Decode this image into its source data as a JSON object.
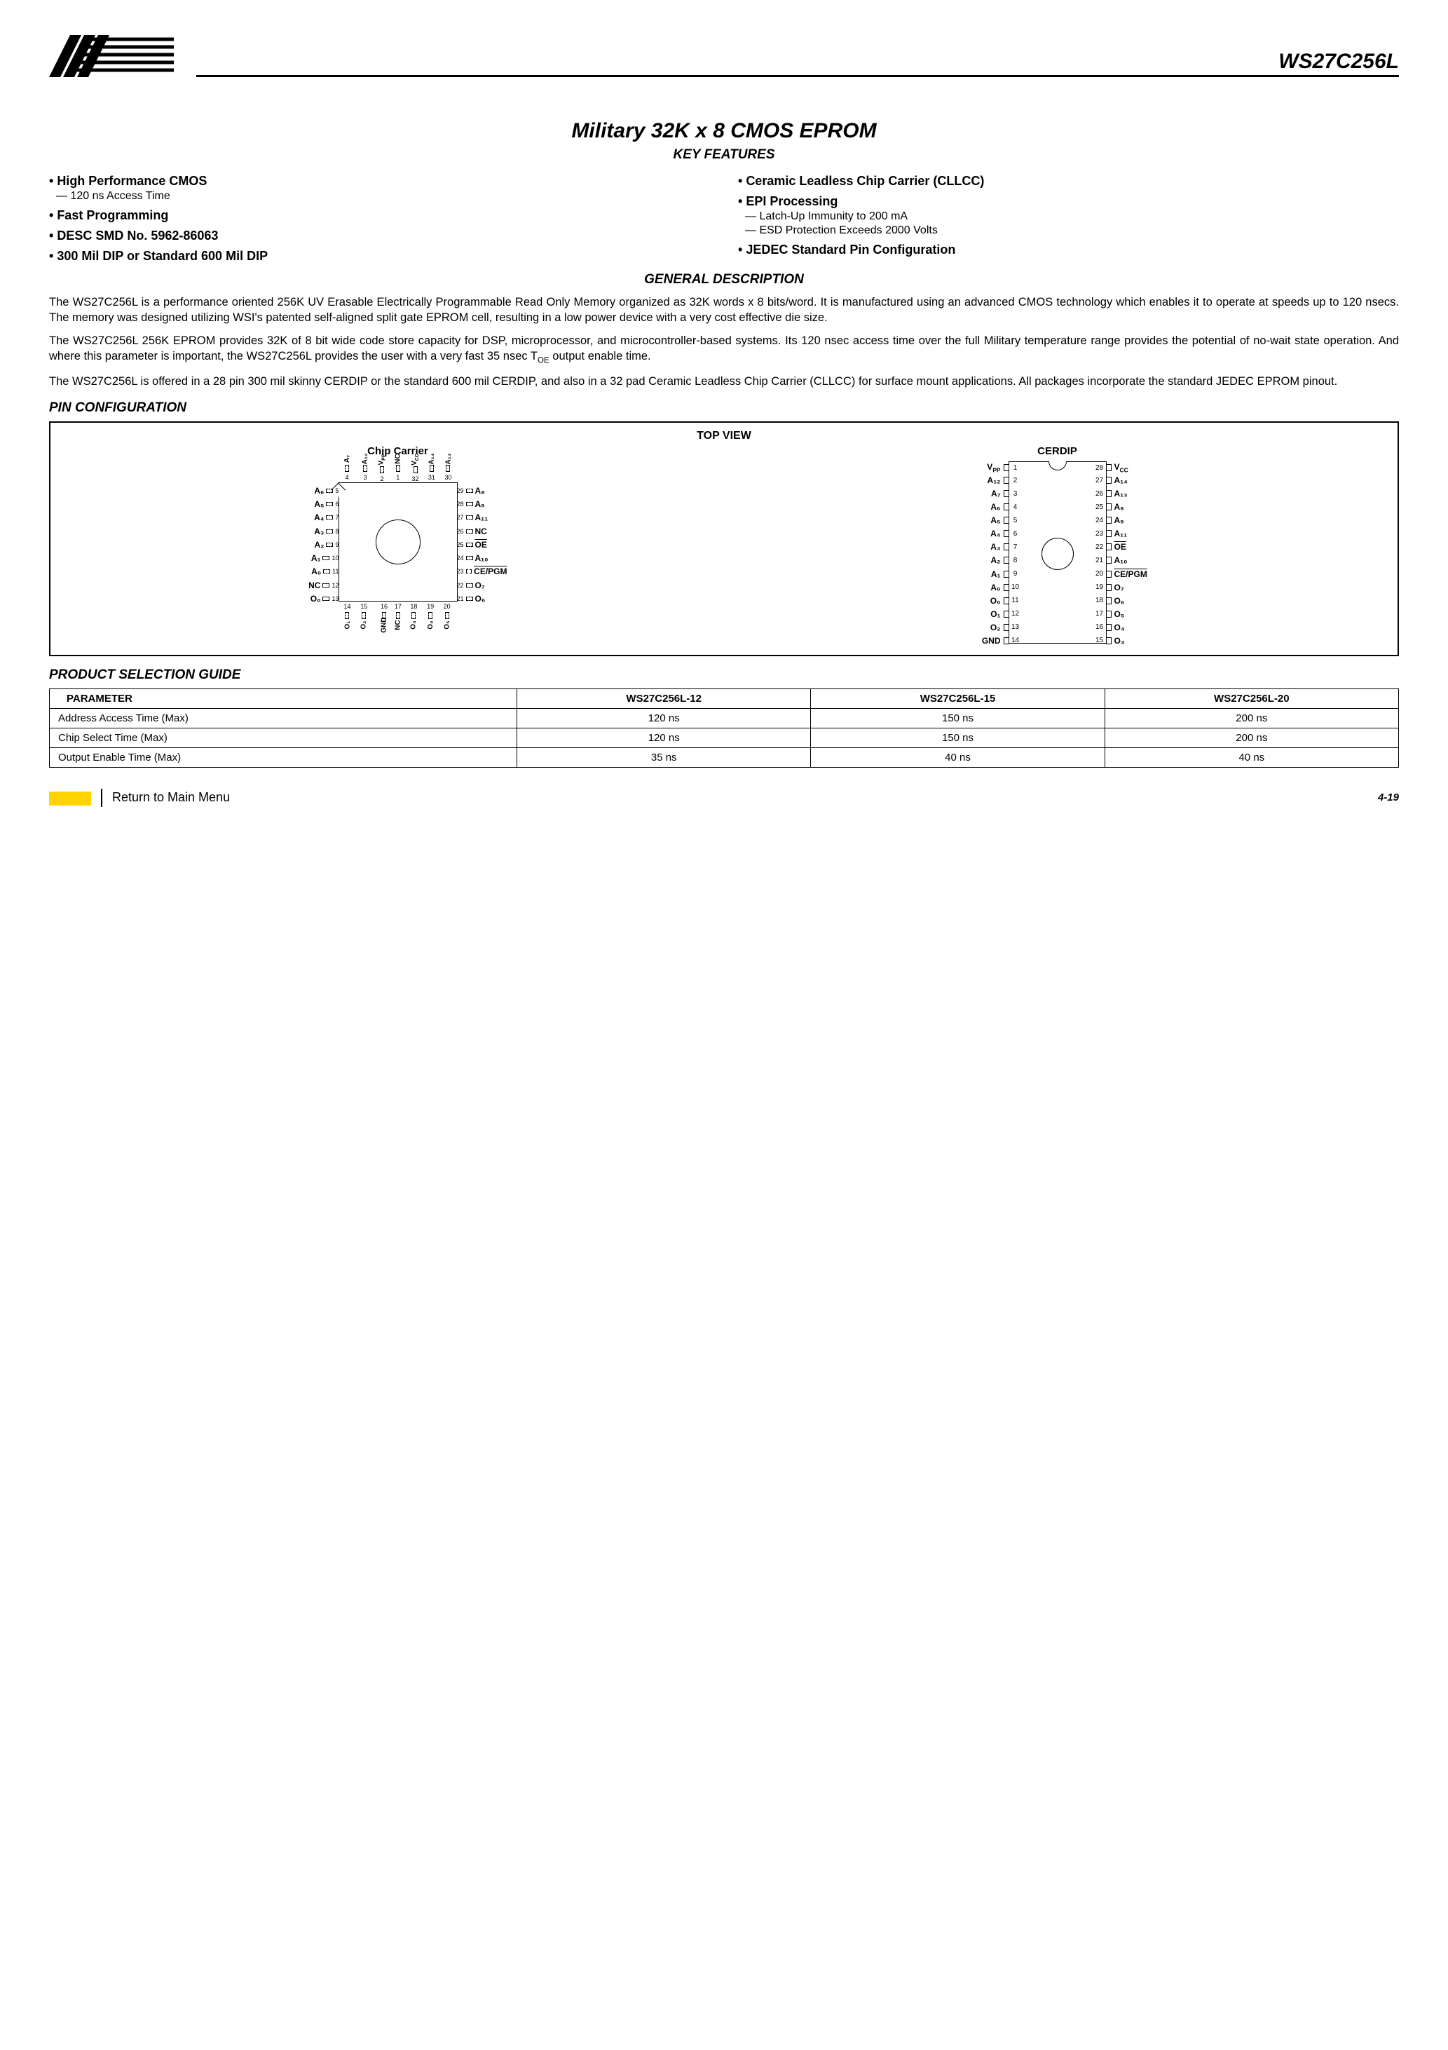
{
  "header": {
    "part_number": "WS27C256L"
  },
  "title": "Military 32K x 8 CMOS EPROM",
  "sections": {
    "key_features": "KEY FEATURES",
    "general_desc": "GENERAL DESCRIPTION",
    "pin_config": "PIN CONFIGURATION",
    "product_sel": "PRODUCT SELECTION GUIDE"
  },
  "features": {
    "left": [
      {
        "type": "main",
        "text": "High Performance CMOS"
      },
      {
        "type": "sub",
        "text": "120 ns Access Time"
      },
      {
        "type": "main",
        "text": "Fast Programming"
      },
      {
        "type": "main",
        "text": "DESC SMD No. 5962-86063"
      },
      {
        "type": "main",
        "text": "300 Mil DIP or Standard 600 Mil DIP"
      }
    ],
    "right": [
      {
        "type": "main",
        "text": "Ceramic Leadless Chip Carrier (CLLCC)"
      },
      {
        "type": "main",
        "text": "EPI Processing"
      },
      {
        "type": "sub",
        "text": "Latch-Up Immunity to 200 mA"
      },
      {
        "type": "sub",
        "text": "ESD Protection Exceeds 2000 Volts"
      },
      {
        "type": "main",
        "text": "JEDEC Standard Pin Configuration"
      }
    ]
  },
  "description": {
    "p1": "The WS27C256L is a performance oriented 256K UV Erasable Electrically Programmable Read Only Memory organized as 32K words x 8 bits/word. It is manufactured using an advanced CMOS technology which enables it to operate at speeds up to 120 nsecs. The memory was designed utilizing WSI's patented self-aligned split gate EPROM cell, resulting in a low power device with a very cost effective die size.",
    "p2": "The WS27C256L 256K EPROM provides 32K of 8 bit wide code store capacity for DSP, microprocessor, and microcontroller-based systems. Its 120 nsec access time over the full Military temperature range provides the potential of no-wait state operation. And where this parameter is important, the WS27C256L provides the user with a very fast 35 nsec T",
    "p2_sub": "OE",
    "p2_tail": " output enable time.",
    "p3": "The WS27C256L is offered in a 28 pin 300 mil skinny CERDIP or the standard 600 mil CERDIP, and also in a 32 pad Ceramic Leadless Chip Carrier (CLLCC) for surface mount applications.  All packages incorporate the standard JEDEC EPROM pinout."
  },
  "pinbox": {
    "topview": "TOP VIEW",
    "cc_title": "Chip Carrier",
    "dip_title": "CERDIP"
  },
  "cc": {
    "top": [
      {
        "n": "4",
        "l": "A₇"
      },
      {
        "n": "3",
        "l": "A₁₂"
      },
      {
        "n": "2",
        "l": "V_PP"
      },
      {
        "n": "1",
        "l": "NC"
      },
      {
        "n": "32",
        "l": "V_CC"
      },
      {
        "n": "31",
        "l": "A₁₄"
      },
      {
        "n": "30",
        "l": "A₁₃"
      }
    ],
    "left": [
      {
        "n": "5",
        "l": "A₆"
      },
      {
        "n": "6",
        "l": "A₅"
      },
      {
        "n": "7",
        "l": "A₄"
      },
      {
        "n": "8",
        "l": "A₃"
      },
      {
        "n": "9",
        "l": "A₂"
      },
      {
        "n": "10",
        "l": "A₁"
      },
      {
        "n": "11",
        "l": "A₀"
      },
      {
        "n": "12",
        "l": "NC"
      },
      {
        "n": "13",
        "l": "O₀"
      }
    ],
    "right": [
      {
        "n": "29",
        "l": "A₈"
      },
      {
        "n": "28",
        "l": "A₉"
      },
      {
        "n": "27",
        "l": "A₁₁"
      },
      {
        "n": "26",
        "l": "NC"
      },
      {
        "n": "25",
        "l": "OE",
        "ov": true
      },
      {
        "n": "24",
        "l": "A₁₀"
      },
      {
        "n": "23",
        "l": "CE/PGM",
        "ov": true
      },
      {
        "n": "22",
        "l": "O₇"
      },
      {
        "n": "21",
        "l": "O₆"
      }
    ],
    "bottom": [
      {
        "n": "14",
        "l": "O₁"
      },
      {
        "n": "15",
        "l": "O₂"
      },
      {
        "n": "16",
        "l": "GND"
      },
      {
        "n": "17",
        "l": "NC"
      },
      {
        "n": "18",
        "l": "O₃"
      },
      {
        "n": "19",
        "l": "O₄"
      },
      {
        "n": "20",
        "l": "O₅"
      }
    ]
  },
  "dip": {
    "left": [
      {
        "n": "1",
        "l": "V_PP"
      },
      {
        "n": "2",
        "l": "A₁₂"
      },
      {
        "n": "3",
        "l": "A₇"
      },
      {
        "n": "4",
        "l": "A₆"
      },
      {
        "n": "5",
        "l": "A₅"
      },
      {
        "n": "6",
        "l": "A₄"
      },
      {
        "n": "7",
        "l": "A₃"
      },
      {
        "n": "8",
        "l": "A₂"
      },
      {
        "n": "9",
        "l": "A₁"
      },
      {
        "n": "10",
        "l": "A₀"
      },
      {
        "n": "11",
        "l": "O₀"
      },
      {
        "n": "12",
        "l": "O₁"
      },
      {
        "n": "13",
        "l": "O₂"
      },
      {
        "n": "14",
        "l": "GND"
      }
    ],
    "right": [
      {
        "n": "28",
        "l": "V_CC"
      },
      {
        "n": "27",
        "l": "A₁₄"
      },
      {
        "n": "26",
        "l": "A₁₃"
      },
      {
        "n": "25",
        "l": "A₈"
      },
      {
        "n": "24",
        "l": "A₉"
      },
      {
        "n": "23",
        "l": "A₁₁"
      },
      {
        "n": "22",
        "l": "OE",
        "ov": true
      },
      {
        "n": "21",
        "l": "A₁₀"
      },
      {
        "n": "20",
        "l": "CE/PGM",
        "ov": true
      },
      {
        "n": "19",
        "l": "O₇"
      },
      {
        "n": "18",
        "l": "O₆"
      },
      {
        "n": "17",
        "l": "O₅"
      },
      {
        "n": "16",
        "l": "O₄"
      },
      {
        "n": "15",
        "l": "O₃"
      }
    ]
  },
  "selection": {
    "headers": [
      "PARAMETER",
      "WS27C256L-12",
      "WS27C256L-15",
      "WS27C256L-20"
    ],
    "rows": [
      [
        "Address Access Time (Max)",
        "120 ns",
        "150 ns",
        "200 ns"
      ],
      [
        "Chip Select Time (Max)",
        "120 ns",
        "150 ns",
        "200 ns"
      ],
      [
        "Output Enable Time (Max)",
        "35 ns",
        "40 ns",
        "40 ns"
      ]
    ]
  },
  "footer": {
    "menu": "Return to Main Menu",
    "page": "4-19"
  }
}
